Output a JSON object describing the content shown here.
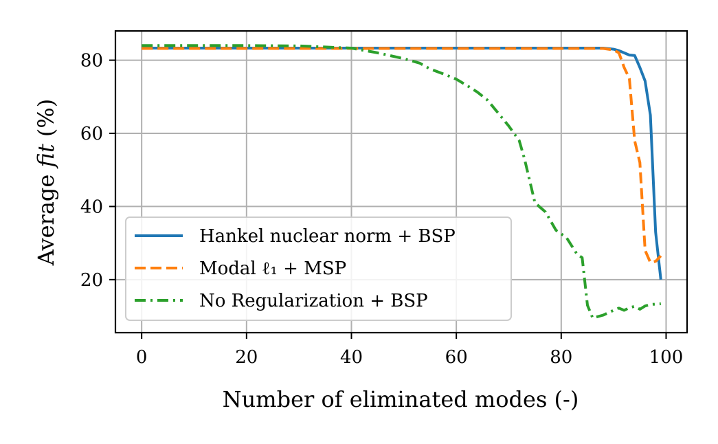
{
  "chart_data": {
    "type": "line",
    "title": "",
    "xlabel": "Number of eliminated modes (-)",
    "ylabel_prefix": "Average ",
    "ylabel_italic": "fit",
    "ylabel_suffix": " (%)",
    "xlim": [
      -5,
      104
    ],
    "ylim": [
      5.5,
      88
    ],
    "xticks": [
      0,
      20,
      40,
      60,
      80,
      100
    ],
    "yticks": [
      20,
      40,
      60,
      80
    ],
    "grid": true,
    "legend_position": "lower-left",
    "series": [
      {
        "name": "Hankel nuclear norm + BSP",
        "color": "#1f77b4",
        "style": "solid",
        "x": [
          0,
          10,
          20,
          30,
          40,
          50,
          60,
          70,
          80,
          88,
          90,
          91,
          92,
          93,
          94,
          95,
          96,
          97,
          98,
          99
        ],
        "y": [
          83.3,
          83.3,
          83.3,
          83.3,
          83.3,
          83.3,
          83.3,
          83.3,
          83.3,
          83.3,
          83.0,
          82.6,
          82.0,
          81.4,
          81.3,
          78.0,
          74.3,
          65.0,
          33.0,
          20.0
        ]
      },
      {
        "name": "Modal ℓ₁ + MSP",
        "color": "#ff7f0e",
        "style": "dashed",
        "x": [
          0,
          10,
          20,
          30,
          40,
          50,
          60,
          70,
          80,
          88,
          90,
          91,
          92,
          93,
          94,
          95,
          96,
          97,
          98,
          99
        ],
        "y": [
          83.2,
          83.2,
          83.2,
          83.2,
          83.2,
          83.2,
          83.2,
          83.2,
          83.2,
          83.2,
          82.8,
          82.0,
          78.0,
          75.0,
          58.0,
          52.0,
          28.0,
          24.7,
          25.0,
          26.5
        ]
      },
      {
        "name": "No Regularization + BSP",
        "color": "#2ca02c",
        "style": "dashdot",
        "x": [
          0,
          10,
          20,
          30,
          35,
          40,
          45,
          50,
          53,
          55,
          58,
          60,
          62,
          64,
          66,
          68,
          70,
          72,
          73,
          74,
          75,
          77,
          79,
          81,
          83,
          84,
          85,
          86,
          88,
          90,
          91,
          92,
          93,
          94,
          95,
          96,
          97,
          98,
          99
        ],
        "y": [
          84.0,
          84.0,
          84.0,
          83.9,
          83.6,
          83.3,
          82.0,
          80.4,
          79.2,
          77.6,
          76.0,
          74.8,
          73.1,
          71.3,
          69.0,
          65.5,
          62.0,
          58.0,
          53.0,
          47.0,
          41.0,
          38.5,
          33.5,
          31.5,
          27.0,
          26.0,
          13.0,
          9.5,
          10.3,
          11.6,
          12.2,
          11.6,
          12.3,
          12.7,
          11.9,
          12.8,
          13.2,
          13.3,
          13.4
        ]
      }
    ]
  }
}
